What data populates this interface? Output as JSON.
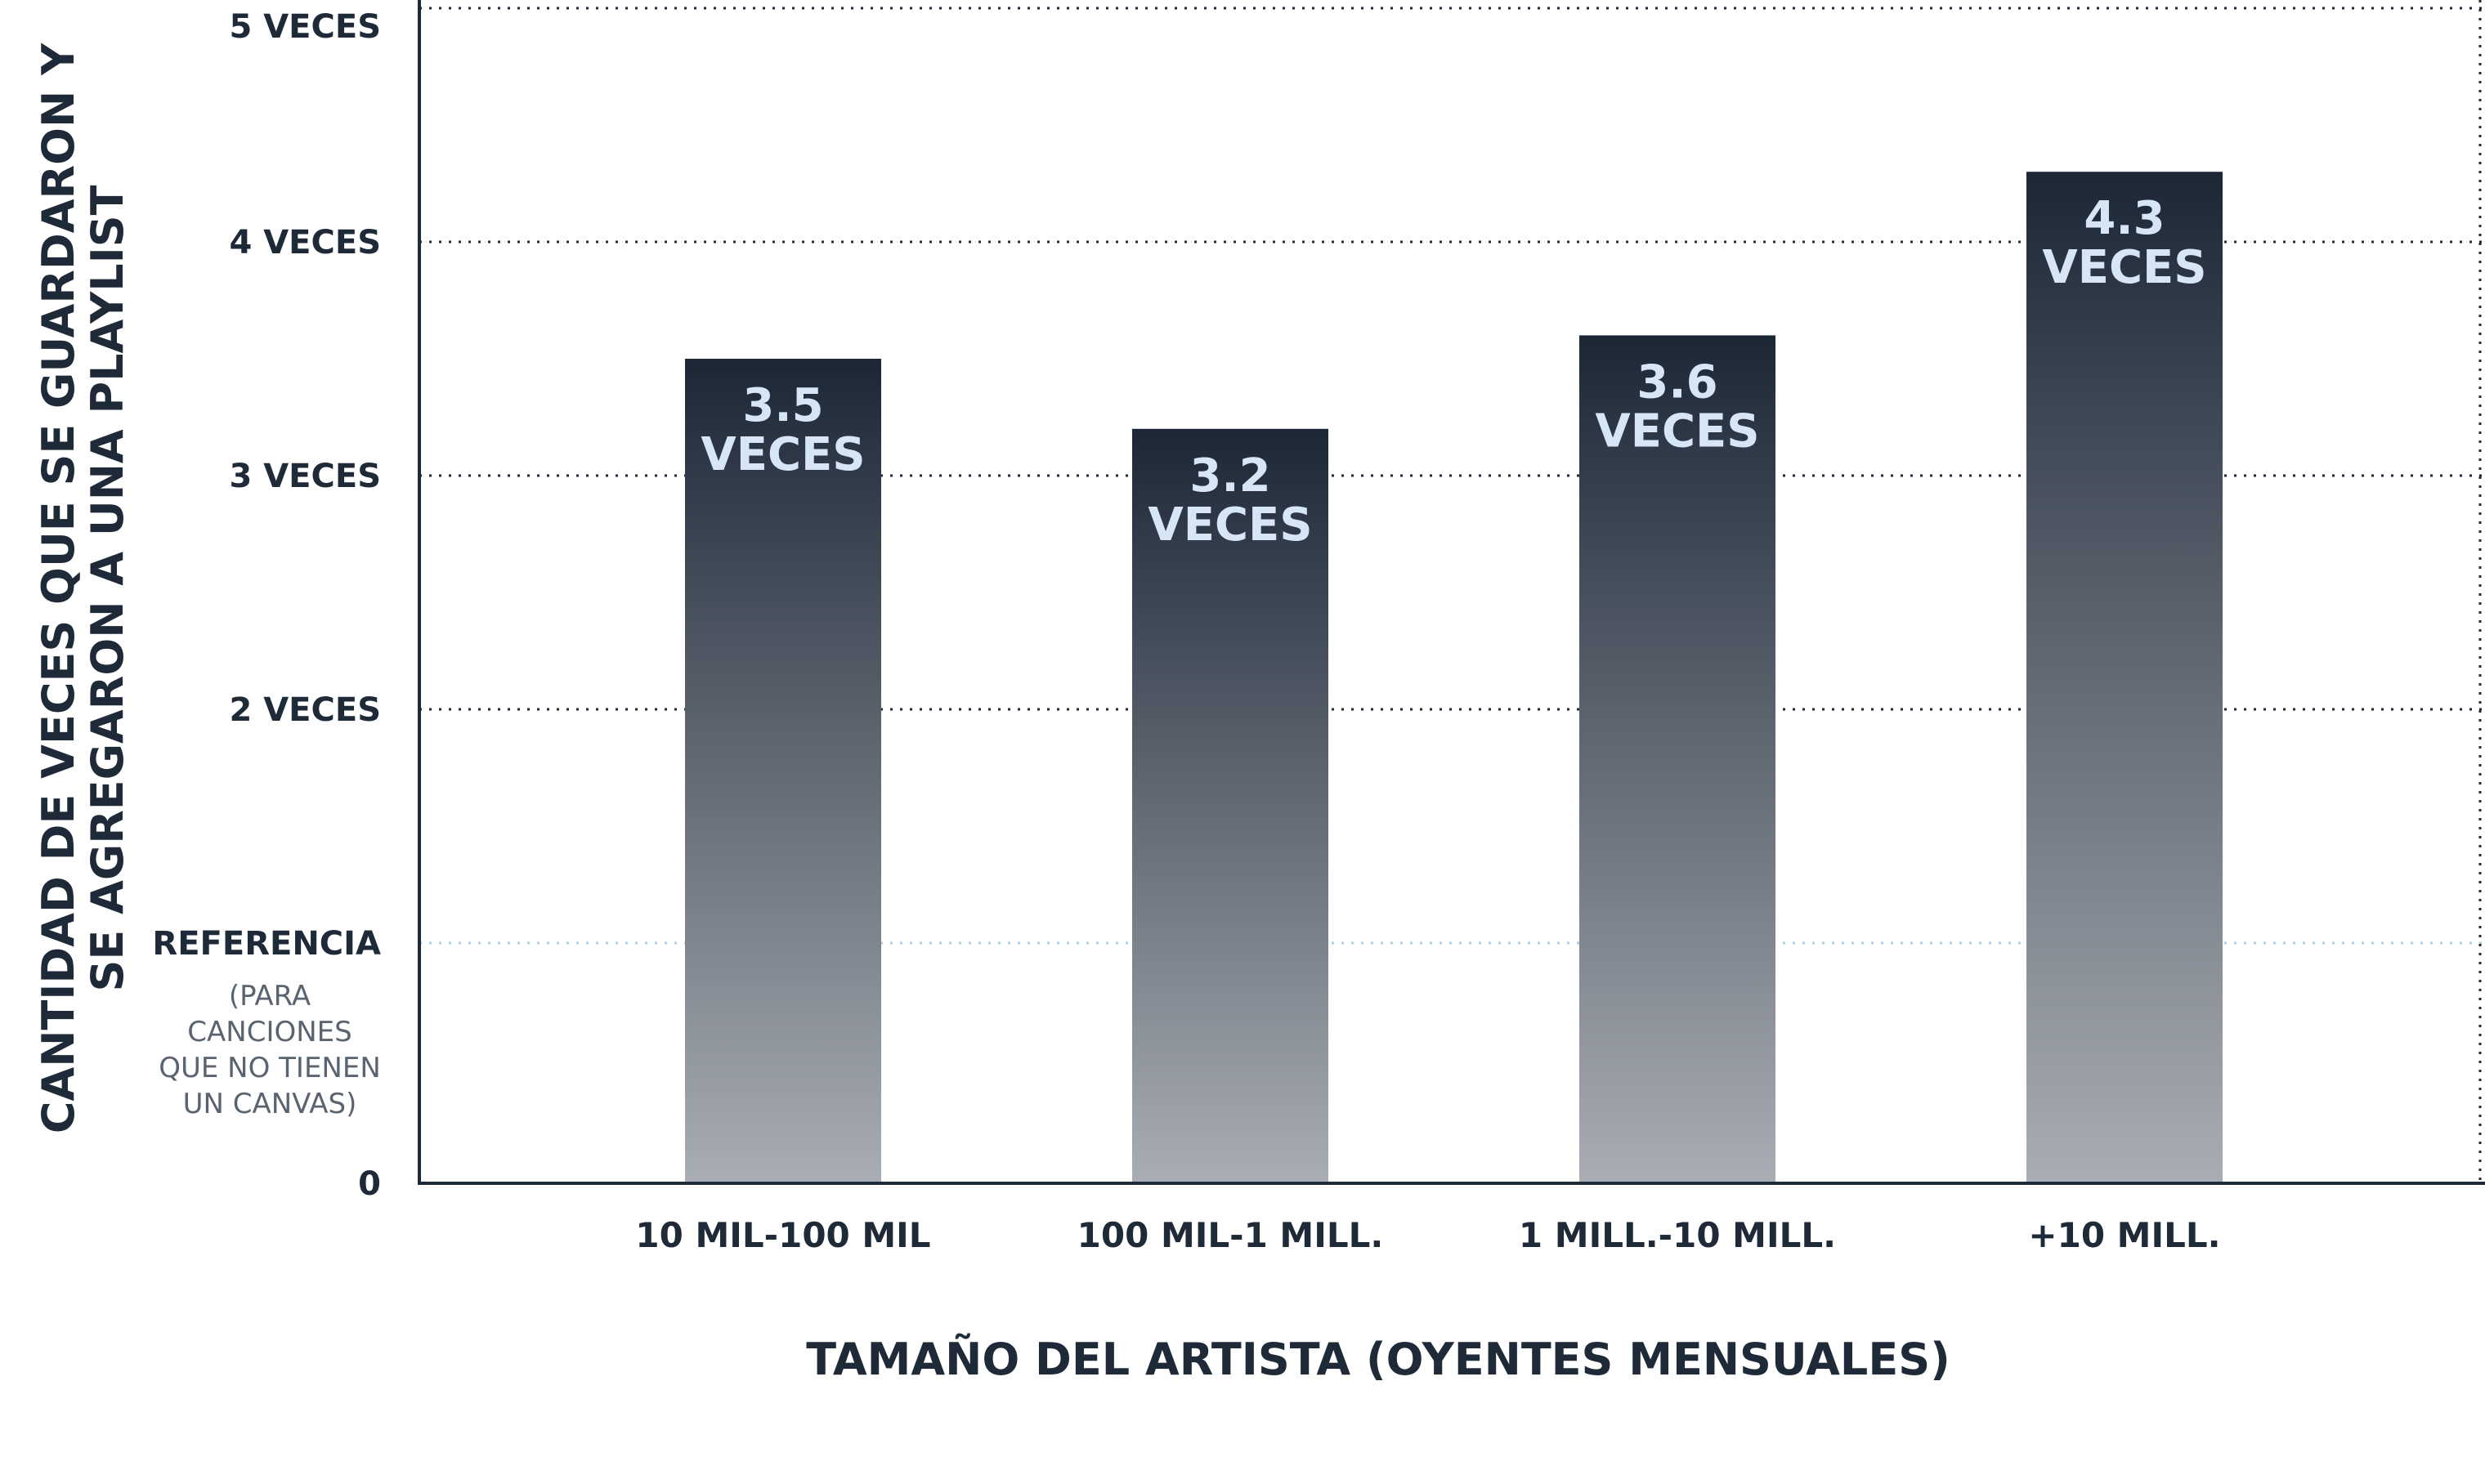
{
  "chart_data": {
    "type": "bar",
    "categories": [
      "10 MIL-100 MIL",
      "100 MIL-1 MILL.",
      "1 MILL.-10 MILL.",
      "+10 MILL."
    ],
    "values": [
      3.5,
      3.2,
      3.6,
      4.3
    ],
    "value_labels": [
      [
        "3.5",
        "VECES"
      ],
      [
        "3.2",
        "VECES"
      ],
      [
        "3.6",
        "VECES"
      ],
      [
        "4.3",
        "VECES"
      ]
    ],
    "xlabel": "TAMAÑO DEL ARTISTA (OYENTES MENSUALES)",
    "ylabel_lines": [
      "CANTIDAD DE VECES QUE SE GUARDARON Y",
      "SE AGREGARON A UNA PLAYLIST"
    ],
    "y_ticks": [
      {
        "value": 0,
        "label": "0"
      },
      {
        "value": 2,
        "label": "2 VECES"
      },
      {
        "value": 3,
        "label": "3 VECES"
      },
      {
        "value": 4,
        "label": "4 VECES"
      },
      {
        "value": 5,
        "label": "5 VECES"
      }
    ],
    "reference": {
      "value": 1,
      "label": "REFERENCIA",
      "note_lines": [
        "(PARA",
        "CANCIONES",
        "QUE NO TIENEN",
        "UN CANVAS)"
      ]
    },
    "ylim": [
      0,
      5
    ],
    "grid": true,
    "colors": {
      "bar_top": "#1c2736",
      "bar_bottom": "#a9adb4",
      "bar_label": "#d7e6f7",
      "text": "#1f2a38",
      "grid": "#1f2a38",
      "reference_line": "#a9cfe6"
    }
  }
}
